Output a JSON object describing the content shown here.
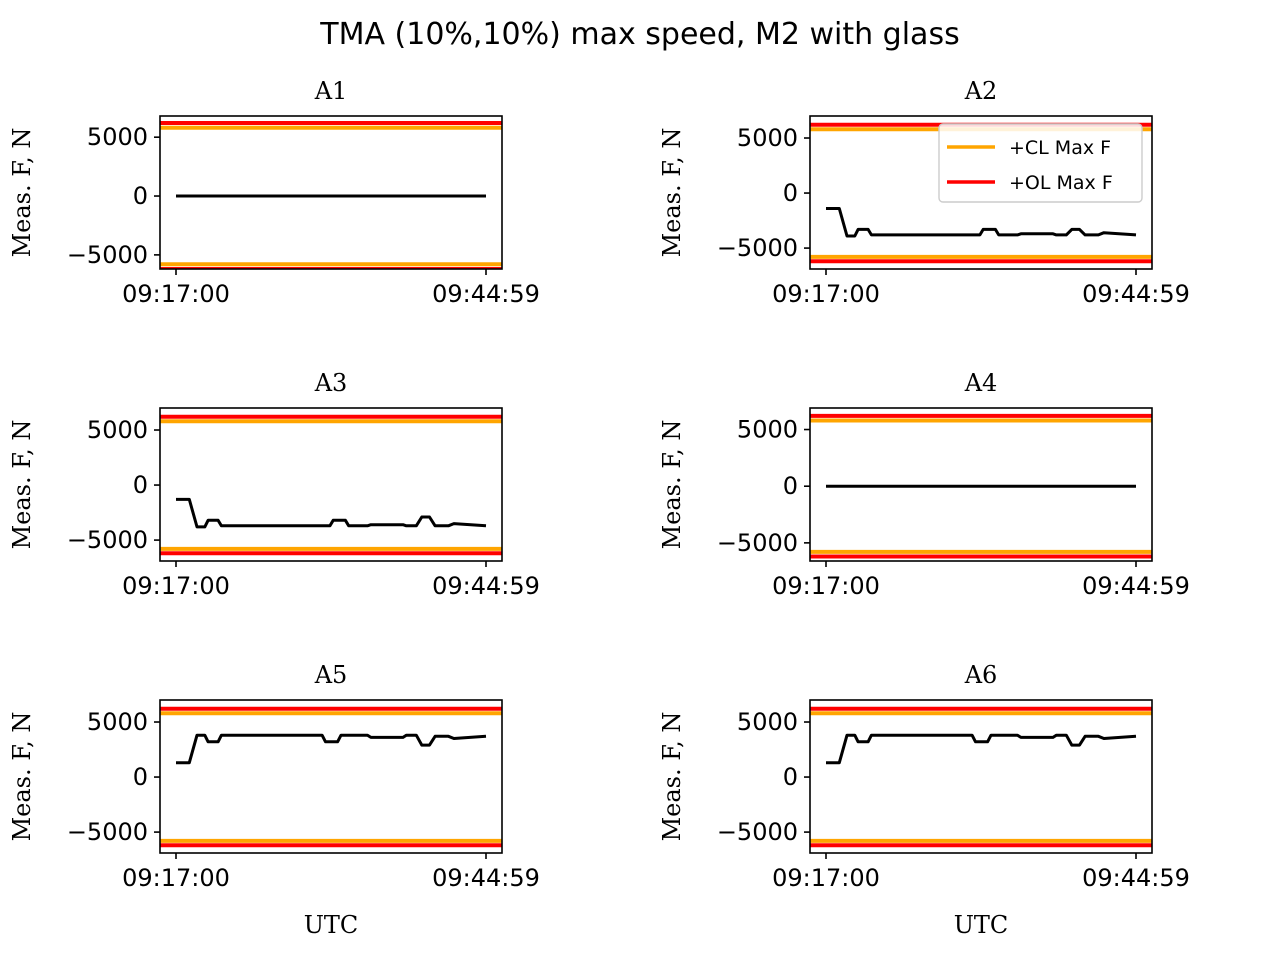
{
  "chart_data": {
    "type": "line",
    "title": "TMA (10%,10%) max speed, M2 with glass",
    "layout": "3x2",
    "legend": {
      "location": "upper-right",
      "panel": "A2",
      "entries": [
        {
          "label": "+CL Max F",
          "color": "#ffa500"
        },
        {
          "label": "+OL Max F",
          "color": "#ff0000"
        }
      ]
    },
    "colors": {
      "measured": "#000000",
      "cl_limit": "#ffa500",
      "ol_limit": "#ff0000"
    },
    "x_tick_labels": [
      "09:17:00",
      "09:44:59"
    ],
    "x_unit_note": "x values in minutes after 09:17:00",
    "xlabel": "UTC",
    "ylabel": "Meas. F, N",
    "grid": false,
    "panels": [
      {
        "name": "A1",
        "ylim": [
          -6200,
          6800
        ],
        "yticks": [
          5000,
          0,
          -5000
        ],
        "yticklabels": [
          "5000",
          "0",
          "−5000"
        ],
        "cl_max": 5800,
        "ol_max": 6200,
        "x": [
          0,
          28
        ],
        "y": [
          0,
          0
        ]
      },
      {
        "name": "A2",
        "ylim": [
          -6900,
          7000
        ],
        "yticks": [
          5000,
          0,
          -5000
        ],
        "yticklabels": [
          "5000",
          "0",
          "−5000"
        ],
        "cl_max": 5800,
        "ol_max": 6200,
        "x": [
          0,
          1.2,
          1.9,
          2.6,
          2.9,
          3.8,
          4.1,
          13.9,
          14.2,
          15.3,
          15.6,
          17.3,
          17.6,
          20.5,
          20.8,
          21.7,
          22.2,
          22.9,
          23.4,
          24.6,
          25.1,
          28
        ],
        "y": [
          -1400,
          -1400,
          -3900,
          -3900,
          -3300,
          -3300,
          -3800,
          -3800,
          -3300,
          -3300,
          -3800,
          -3800,
          -3700,
          -3700,
          -3800,
          -3800,
          -3300,
          -3300,
          -3800,
          -3800,
          -3600,
          -3800
        ]
      },
      {
        "name": "A3",
        "ylim": [
          -6900,
          7000
        ],
        "yticks": [
          5000,
          0,
          -5000
        ],
        "yticklabels": [
          "5000",
          "0",
          "−5000"
        ],
        "cl_max": 5800,
        "ol_max": 6200,
        "x": [
          0,
          1.2,
          1.9,
          2.6,
          2.9,
          3.8,
          4.1,
          13.9,
          14.2,
          15.3,
          15.6,
          17.3,
          17.6,
          20.5,
          20.8,
          21.7,
          22.2,
          22.9,
          23.4,
          24.6,
          25.1,
          28
        ],
        "y": [
          -1300,
          -1300,
          -3800,
          -3800,
          -3200,
          -3200,
          -3700,
          -3700,
          -3200,
          -3200,
          -3700,
          -3700,
          -3600,
          -3600,
          -3700,
          -3700,
          -2900,
          -2900,
          -3700,
          -3700,
          -3500,
          -3700
        ]
      },
      {
        "name": "A4",
        "ylim": [
          -6600,
          6900
        ],
        "yticks": [
          5000,
          0,
          -5000
        ],
        "yticklabels": [
          "5000",
          "0",
          "−5000"
        ],
        "cl_max": 5800,
        "ol_max": 6200,
        "x": [
          0,
          28
        ],
        "y": [
          0,
          0
        ]
      },
      {
        "name": "A5",
        "ylim": [
          -6900,
          7000
        ],
        "yticks": [
          5000,
          0,
          -5000
        ],
        "yticklabels": [
          "5000",
          "0",
          "−5000"
        ],
        "cl_max": 5800,
        "ol_max": 6200,
        "x": [
          0,
          1.2,
          1.9,
          2.6,
          2.9,
          3.8,
          4.1,
          13.2,
          13.5,
          14.6,
          14.9,
          17.3,
          17.6,
          20.5,
          20.8,
          21.7,
          22.2,
          22.9,
          23.4,
          24.6,
          25.1,
          28
        ],
        "y": [
          1300,
          1300,
          3800,
          3800,
          3200,
          3200,
          3800,
          3800,
          3200,
          3200,
          3800,
          3800,
          3600,
          3600,
          3800,
          3800,
          2900,
          2900,
          3700,
          3700,
          3500,
          3700
        ]
      },
      {
        "name": "A6",
        "ylim": [
          -6900,
          7000
        ],
        "yticks": [
          5000,
          0,
          -5000
        ],
        "yticklabels": [
          "5000",
          "0",
          "−5000"
        ],
        "cl_max": 5800,
        "ol_max": 6200,
        "x": [
          0,
          1.2,
          1.9,
          2.6,
          2.9,
          3.8,
          4.1,
          13.2,
          13.5,
          14.6,
          14.9,
          17.3,
          17.6,
          20.5,
          20.8,
          21.7,
          22.2,
          22.9,
          23.4,
          24.6,
          25.1,
          28
        ],
        "y": [
          1300,
          1300,
          3800,
          3800,
          3200,
          3200,
          3800,
          3800,
          3200,
          3200,
          3800,
          3800,
          3600,
          3600,
          3800,
          3800,
          2900,
          2900,
          3700,
          3700,
          3500,
          3700
        ]
      }
    ]
  }
}
